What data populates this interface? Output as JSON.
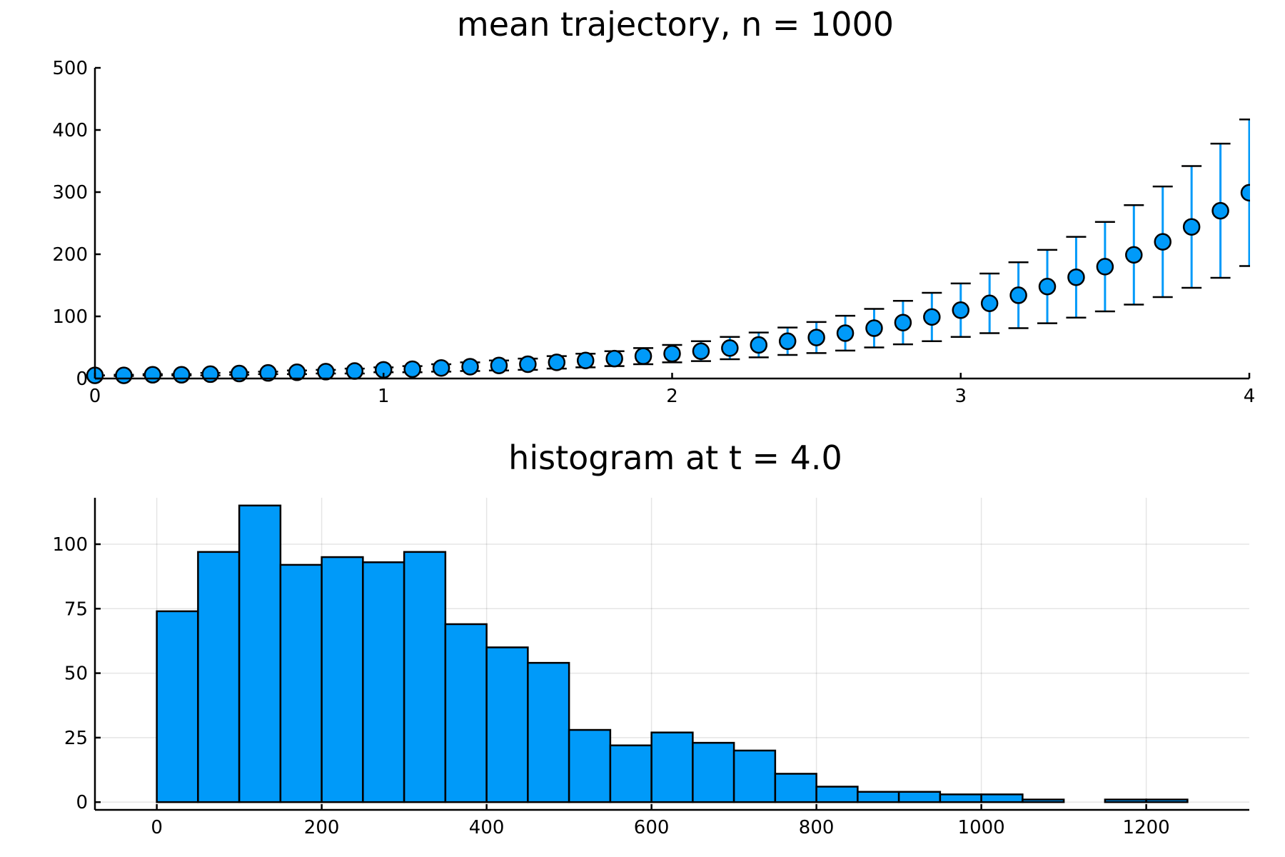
{
  "chart_data": [
    {
      "type": "scatter",
      "title": "mean trajectory, n = 1000",
      "xlabel": "",
      "ylabel": "",
      "xlim": [
        0,
        4
      ],
      "ylim": [
        0,
        500
      ],
      "xticks": [
        0,
        1,
        2,
        3,
        4
      ],
      "yticks": [
        0,
        100,
        200,
        300,
        400,
        500
      ],
      "grid": false,
      "legend": "none",
      "color": "#009af9",
      "series": [
        {
          "x": [
            0.0,
            0.1,
            0.2,
            0.3,
            0.4,
            0.5,
            0.6,
            0.7,
            0.8,
            0.9,
            1.0,
            1.1,
            1.2,
            1.3,
            1.4,
            1.5,
            1.6,
            1.7,
            1.8,
            1.9,
            2.0,
            2.1,
            2.2,
            2.3,
            2.4,
            2.5,
            2.6,
            2.7,
            2.8,
            2.9,
            3.0,
            3.1,
            3.2,
            3.3,
            3.4,
            3.5,
            3.6,
            3.7,
            3.8,
            3.9,
            4.0
          ],
          "y": [
            5,
            5,
            6,
            6,
            7,
            8,
            9,
            10,
            11,
            12,
            14,
            15,
            17,
            19,
            21,
            23,
            26,
            29,
            32,
            36,
            40,
            44,
            49,
            54,
            60,
            66,
            73,
            81,
            90,
            99,
            110,
            121,
            134,
            148,
            163,
            180,
            199,
            220,
            244,
            270,
            299
          ],
          "yerr": [
            0,
            1,
            1,
            1,
            2,
            2,
            2,
            3,
            3,
            4,
            4,
            5,
            6,
            7,
            8,
            9,
            10,
            11,
            12,
            13,
            14,
            16,
            18,
            20,
            22,
            25,
            28,
            31,
            35,
            39,
            43,
            48,
            53,
            59,
            65,
            72,
            80,
            89,
            98,
            108,
            118
          ]
        }
      ]
    },
    {
      "type": "bar",
      "title": "histogram at t = 4.0",
      "xlabel": "",
      "ylabel": "",
      "xlim": [
        -75,
        1325
      ],
      "ylim": [
        -3,
        118
      ],
      "xticks": [
        0,
        200,
        400,
        600,
        800,
        1000,
        1200
      ],
      "yticks": [
        0,
        25,
        50,
        75,
        100
      ],
      "grid": true,
      "legend": "none",
      "color": "#009af9",
      "bin_width": 50,
      "bin_edges_start": 0,
      "values": [
        74,
        97,
        115,
        92,
        95,
        93,
        97,
        69,
        60,
        54,
        28,
        22,
        27,
        23,
        20,
        11,
        6,
        4,
        4,
        3,
        3,
        1,
        0,
        1,
        1
      ]
    }
  ]
}
